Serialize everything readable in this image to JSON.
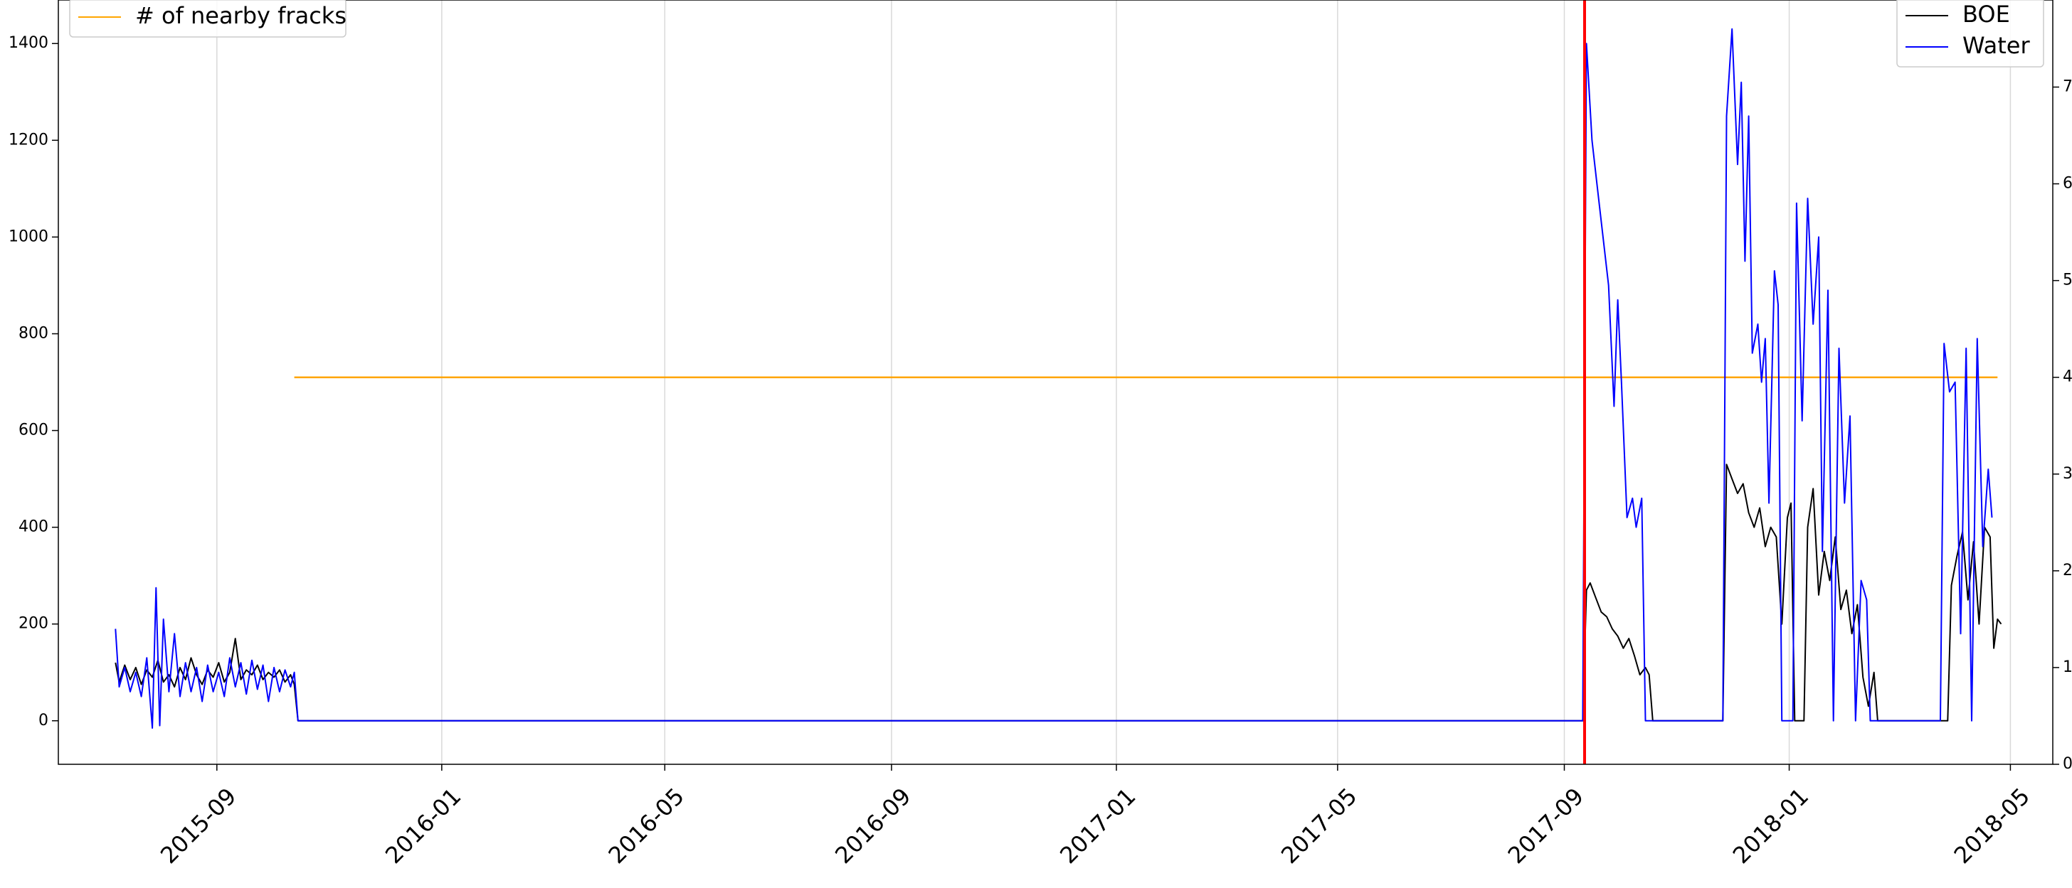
{
  "chart_data": {
    "type": "line",
    "title": "",
    "xlabel": "",
    "ylabel": "",
    "x_axis": {
      "type": "date",
      "range": [
        "2015-06-07",
        "2018-05-24"
      ],
      "ticks": [
        "2015-09",
        "2016-01",
        "2016-05",
        "2016-09",
        "2017-01",
        "2017-05",
        "2017-09",
        "2018-01",
        "2018-05"
      ],
      "grid": true
    },
    "y_left": {
      "range": [
        -90,
        1490
      ],
      "ticks": [
        0,
        200,
        400,
        600,
        800,
        1000,
        1200,
        1400
      ],
      "tick_labels": [
        "0",
        "200",
        "400",
        "600",
        "800",
        "1000",
        "1200",
        "1400"
      ]
    },
    "y_right": {
      "range": [
        0,
        7.9
      ],
      "ticks": [
        0,
        1,
        2,
        3,
        4,
        5,
        6,
        7
      ],
      "tick_labels": [
        "0",
        "1",
        "2",
        "3",
        "4",
        "5",
        "6",
        "7"
      ]
    },
    "series": [
      {
        "name": "BOE",
        "color": "#000000",
        "axis": "left",
        "points": [
          [
            "2015-07-08",
            120
          ],
          [
            "2015-07-10",
            80
          ],
          [
            "2015-07-13",
            115
          ],
          [
            "2015-07-16",
            85
          ],
          [
            "2015-07-19",
            110
          ],
          [
            "2015-07-22",
            75
          ],
          [
            "2015-07-25",
            105
          ],
          [
            "2015-07-28",
            90
          ],
          [
            "2015-07-31",
            125
          ],
          [
            "2015-08-03",
            80
          ],
          [
            "2015-08-06",
            95
          ],
          [
            "2015-08-09",
            70
          ],
          [
            "2015-08-12",
            110
          ],
          [
            "2015-08-15",
            85
          ],
          [
            "2015-08-18",
            130
          ],
          [
            "2015-08-21",
            95
          ],
          [
            "2015-08-24",
            75
          ],
          [
            "2015-08-27",
            105
          ],
          [
            "2015-08-30",
            90
          ],
          [
            "2015-09-02",
            120
          ],
          [
            "2015-09-05",
            80
          ],
          [
            "2015-09-08",
            100
          ],
          [
            "2015-09-11",
            170
          ],
          [
            "2015-09-14",
            85
          ],
          [
            "2015-09-17",
            105
          ],
          [
            "2015-09-20",
            95
          ],
          [
            "2015-09-23",
            115
          ],
          [
            "2015-09-26",
            85
          ],
          [
            "2015-09-29",
            100
          ],
          [
            "2015-10-02",
            90
          ],
          [
            "2015-10-05",
            105
          ],
          [
            "2015-10-08",
            80
          ],
          [
            "2015-10-11",
            95
          ],
          [
            "2015-10-13",
            75
          ],
          [
            "2015-10-15",
            0
          ],
          [
            "2017-09-11",
            0
          ],
          [
            "2017-09-13",
            270
          ],
          [
            "2017-09-15",
            285
          ],
          [
            "2017-09-18",
            255
          ],
          [
            "2017-09-21",
            225
          ],
          [
            "2017-09-24",
            215
          ],
          [
            "2017-09-27",
            190
          ],
          [
            "2017-09-30",
            175
          ],
          [
            "2017-10-03",
            150
          ],
          [
            "2017-10-06",
            170
          ],
          [
            "2017-10-09",
            135
          ],
          [
            "2017-10-12",
            95
          ],
          [
            "2017-10-15",
            110
          ],
          [
            "2017-10-17",
            95
          ],
          [
            "2017-10-19",
            0
          ],
          [
            "2017-11-26",
            0
          ],
          [
            "2017-11-28",
            530
          ],
          [
            "2017-12-01",
            500
          ],
          [
            "2017-12-04",
            470
          ],
          [
            "2017-12-07",
            490
          ],
          [
            "2017-12-10",
            430
          ],
          [
            "2017-12-13",
            400
          ],
          [
            "2017-12-16",
            440
          ],
          [
            "2017-12-19",
            360
          ],
          [
            "2017-12-22",
            400
          ],
          [
            "2017-12-25",
            380
          ],
          [
            "2017-12-28",
            200
          ],
          [
            "2017-12-31",
            420
          ],
          [
            "2018-01-02",
            450
          ],
          [
            "2018-01-04",
            0
          ],
          [
            "2018-01-09",
            0
          ],
          [
            "2018-01-11",
            400
          ],
          [
            "2018-01-14",
            480
          ],
          [
            "2018-01-17",
            260
          ],
          [
            "2018-01-20",
            350
          ],
          [
            "2018-01-23",
            290
          ],
          [
            "2018-01-26",
            380
          ],
          [
            "2018-01-29",
            230
          ],
          [
            "2018-02-01",
            270
          ],
          [
            "2018-02-04",
            180
          ],
          [
            "2018-02-07",
            240
          ],
          [
            "2018-02-10",
            90
          ],
          [
            "2018-02-13",
            30
          ],
          [
            "2018-02-16",
            100
          ],
          [
            "2018-02-18",
            0
          ],
          [
            "2018-03-28",
            0
          ],
          [
            "2018-03-30",
            280
          ],
          [
            "2018-04-02",
            340
          ],
          [
            "2018-04-05",
            390
          ],
          [
            "2018-04-08",
            250
          ],
          [
            "2018-04-11",
            370
          ],
          [
            "2018-04-14",
            200
          ],
          [
            "2018-04-17",
            400
          ],
          [
            "2018-04-20",
            380
          ],
          [
            "2018-04-22",
            150
          ],
          [
            "2018-04-24",
            210
          ],
          [
            "2018-04-26",
            200
          ]
        ]
      },
      {
        "name": "Water",
        "color": "#0000ff",
        "axis": "left",
        "points": [
          [
            "2015-07-08",
            190
          ],
          [
            "2015-07-10",
            70
          ],
          [
            "2015-07-13",
            110
          ],
          [
            "2015-07-16",
            60
          ],
          [
            "2015-07-19",
            100
          ],
          [
            "2015-07-22",
            50
          ],
          [
            "2015-07-25",
            130
          ],
          [
            "2015-07-28",
            -15
          ],
          [
            "2015-07-30",
            275
          ],
          [
            "2015-08-01",
            -10
          ],
          [
            "2015-08-03",
            210
          ],
          [
            "2015-08-06",
            60
          ],
          [
            "2015-08-09",
            180
          ],
          [
            "2015-08-12",
            50
          ],
          [
            "2015-08-15",
            120
          ],
          [
            "2015-08-18",
            60
          ],
          [
            "2015-08-21",
            110
          ],
          [
            "2015-08-24",
            40
          ],
          [
            "2015-08-27",
            115
          ],
          [
            "2015-08-30",
            60
          ],
          [
            "2015-09-02",
            100
          ],
          [
            "2015-09-05",
            50
          ],
          [
            "2015-09-08",
            130
          ],
          [
            "2015-09-11",
            70
          ],
          [
            "2015-09-14",
            120
          ],
          [
            "2015-09-17",
            55
          ],
          [
            "2015-09-20",
            125
          ],
          [
            "2015-09-23",
            65
          ],
          [
            "2015-09-26",
            115
          ],
          [
            "2015-09-29",
            40
          ],
          [
            "2015-10-02",
            110
          ],
          [
            "2015-10-05",
            60
          ],
          [
            "2015-10-08",
            105
          ],
          [
            "2015-10-11",
            70
          ],
          [
            "2015-10-13",
            100
          ],
          [
            "2015-10-15",
            0
          ],
          [
            "2017-09-11",
            0
          ],
          [
            "2017-09-13",
            1400
          ],
          [
            "2017-09-16",
            1200
          ],
          [
            "2017-09-19",
            1100
          ],
          [
            "2017-09-22",
            1000
          ],
          [
            "2017-09-25",
            900
          ],
          [
            "2017-09-28",
            650
          ],
          [
            "2017-09-30",
            870
          ],
          [
            "2017-10-02",
            700
          ],
          [
            "2017-10-05",
            420
          ],
          [
            "2017-10-08",
            460
          ],
          [
            "2017-10-10",
            400
          ],
          [
            "2017-10-13",
            460
          ],
          [
            "2017-10-15",
            0
          ],
          [
            "2017-11-26",
            0
          ],
          [
            "2017-11-28",
            1250
          ],
          [
            "2017-12-01",
            1430
          ],
          [
            "2017-12-04",
            1150
          ],
          [
            "2017-12-06",
            1320
          ],
          [
            "2017-12-08",
            950
          ],
          [
            "2017-12-10",
            1250
          ],
          [
            "2017-12-12",
            760
          ],
          [
            "2017-12-15",
            820
          ],
          [
            "2017-12-17",
            700
          ],
          [
            "2017-12-19",
            790
          ],
          [
            "2017-12-21",
            450
          ],
          [
            "2017-12-24",
            930
          ],
          [
            "2017-12-26",
            860
          ],
          [
            "2017-12-28",
            0
          ],
          [
            "2018-01-03",
            0
          ],
          [
            "2018-01-05",
            1070
          ],
          [
            "2018-01-08",
            620
          ],
          [
            "2018-01-11",
            1080
          ],
          [
            "2018-01-14",
            820
          ],
          [
            "2018-01-17",
            1000
          ],
          [
            "2018-01-19",
            350
          ],
          [
            "2018-01-22",
            890
          ],
          [
            "2018-01-25",
            0
          ],
          [
            "2018-01-28",
            770
          ],
          [
            "2018-01-31",
            450
          ],
          [
            "2018-02-03",
            630
          ],
          [
            "2018-02-06",
            0
          ],
          [
            "2018-02-09",
            290
          ],
          [
            "2018-02-12",
            250
          ],
          [
            "2018-02-14",
            0
          ],
          [
            "2018-03-24",
            0
          ],
          [
            "2018-03-26",
            780
          ],
          [
            "2018-03-29",
            680
          ],
          [
            "2018-04-01",
            700
          ],
          [
            "2018-04-04",
            180
          ],
          [
            "2018-04-07",
            770
          ],
          [
            "2018-04-10",
            0
          ],
          [
            "2018-04-13",
            790
          ],
          [
            "2018-04-16",
            360
          ],
          [
            "2018-04-19",
            520
          ],
          [
            "2018-04-21",
            420
          ]
        ]
      },
      {
        "name": "# of nearby fracks",
        "color": "#ffa500",
        "axis": "right",
        "points": [
          [
            "2015-10-13",
            4
          ],
          [
            "2018-04-24",
            4
          ]
        ]
      }
    ],
    "vertical_markers": [
      {
        "x": "2017-09-12",
        "color": "#ff0000"
      }
    ],
    "legend_left": {
      "placement": "top-left",
      "items": [
        {
          "label": "# of nearby fracks",
          "color": "#ffa500"
        }
      ]
    },
    "legend_right": {
      "placement": "top-right",
      "items": [
        {
          "label": "BOE",
          "color": "#000000"
        },
        {
          "label": "Water",
          "color": "#0000ff"
        }
      ]
    }
  }
}
